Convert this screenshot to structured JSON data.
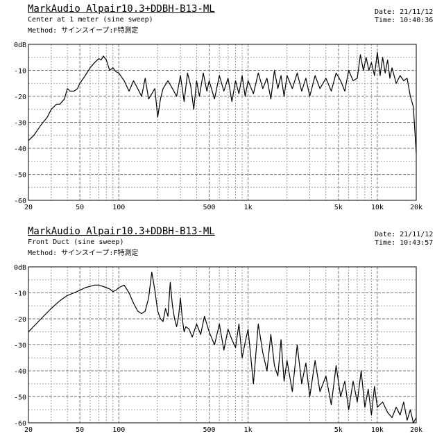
{
  "chart_data": [
    {
      "type": "line",
      "title": "MarkAudio Alpair10.3+DDBH-B13-ML",
      "subtitle": "Center at 1 meter (sine sweep)",
      "method": "Method: サインスイープ:F特測定",
      "date": "Date: 21/11/12",
      "time": "Time: 10:40:36",
      "xscale": "log",
      "xlim": [
        20,
        20000
      ],
      "ylim": [
        -60,
        0
      ],
      "grid": true,
      "xticks": [
        20,
        50,
        100,
        500,
        1000,
        5000,
        10000,
        20000
      ],
      "xtick_labels": [
        "20",
        "50",
        "100",
        "500",
        "1k",
        "5k",
        "10k",
        "20k"
      ],
      "yticks": [
        0,
        -10,
        -20,
        -30,
        -40,
        -50,
        -60
      ],
      "ytick_labels": [
        "0dB",
        "-10",
        "-20",
        "-30",
        "-40",
        "-50",
        "-60"
      ],
      "series": [
        {
          "x": [
            20,
            22,
            25,
            28,
            30,
            33,
            35,
            38,
            40,
            42,
            45,
            48,
            50,
            55,
            60,
            65,
            70,
            73,
            76,
            80,
            85,
            90,
            95,
            100,
            110,
            120,
            130,
            140,
            150,
            160,
            170,
            180,
            190,
            200,
            210,
            220,
            240,
            260,
            280,
            300,
            320,
            340,
            360,
            380,
            400,
            420,
            450,
            480,
            500,
            550,
            600,
            650,
            700,
            750,
            800,
            850,
            900,
            950,
            1000,
            1100,
            1200,
            1300,
            1400,
            1500,
            1600,
            1700,
            1800,
            1900,
            2000,
            2200,
            2400,
            2600,
            2800,
            3000,
            3300,
            3600,
            4000,
            4400,
            4800,
            5200,
            5600,
            6000,
            6500,
            7000,
            7400,
            7800,
            8200,
            8600,
            9000,
            9500,
            10000,
            10500,
            11000,
            11500,
            12000,
            12500,
            13000,
            14000,
            15000,
            16000,
            17000,
            18000,
            19000,
            20000
          ],
          "y": [
            -37,
            -35,
            -31,
            -28,
            -25,
            -23,
            -23,
            -21,
            -17,
            -18,
            -18,
            -17,
            -15,
            -12,
            -9,
            -7,
            -5.5,
            -6,
            -4.5,
            -6,
            -10,
            -9,
            -10.5,
            -11,
            -14,
            -18,
            -14,
            -17,
            -20,
            -13,
            -21,
            -19,
            -17,
            -28,
            -21,
            -17,
            -14,
            -17,
            -20,
            -12,
            -22,
            -11,
            -16,
            -25,
            -14,
            -20,
            -11,
            -18,
            -14,
            -21,
            -12,
            -18,
            -13,
            -22,
            -14,
            -19,
            -12,
            -20,
            -14,
            -19,
            -11,
            -17,
            -13,
            -21,
            -10,
            -17,
            -12,
            -20,
            -12,
            -17,
            -11,
            -18,
            -13,
            -20,
            -12,
            -17,
            -13,
            -18,
            -11,
            -14,
            -18,
            -10,
            -14,
            -13,
            -4,
            -10,
            -5,
            -10,
            -7,
            -12,
            -3,
            -12,
            -5,
            -11,
            -6,
            -13,
            -9,
            -15,
            -12,
            -14,
            -13,
            -20,
            -24,
            -42
          ]
        }
      ]
    },
    {
      "type": "line",
      "title": "MarkAudio Alpair10.3+DDBH-B13-ML",
      "subtitle": "Front Duct (sine sweep)",
      "method": "Method: サインスイープ:F特測定",
      "date": "Date: 21/11/12",
      "time": "Time: 10:43:57",
      "xscale": "log",
      "xlim": [
        20,
        20000
      ],
      "ylim": [
        -60,
        0
      ],
      "grid": true,
      "xticks": [
        20,
        50,
        100,
        500,
        1000,
        5000,
        10000,
        20000
      ],
      "xtick_labels": [
        "20",
        "50",
        "100",
        "500",
        "1k",
        "5k",
        "10k",
        "20k"
      ],
      "yticks": [
        0,
        -10,
        -20,
        -30,
        -40,
        -50,
        -60
      ],
      "ytick_labels": [
        "0dB",
        "-10",
        "-20",
        "-30",
        "-40",
        "-50",
        "-60"
      ],
      "series": [
        {
          "x": [
            20,
            25,
            30,
            35,
            40,
            45,
            50,
            55,
            60,
            65,
            70,
            75,
            80,
            85,
            90,
            95,
            100,
            105,
            110,
            120,
            130,
            140,
            150,
            160,
            170,
            180,
            190,
            200,
            210,
            220,
            230,
            240,
            250,
            260,
            270,
            280,
            290,
            300,
            310,
            320,
            330,
            350,
            370,
            400,
            430,
            460,
            500,
            550,
            600,
            650,
            700,
            750,
            800,
            850,
            900,
            950,
            1000,
            1100,
            1200,
            1300,
            1400,
            1500,
            1600,
            1700,
            1800,
            1900,
            2000,
            2200,
            2400,
            2600,
            2800,
            3000,
            3300,
            3600,
            4000,
            4400,
            4800,
            5200,
            5600,
            6000,
            6500,
            7000,
            7500,
            8000,
            8500,
            9000,
            9500,
            10000,
            11000,
            12000,
            13000,
            14000,
            15000,
            16000,
            17000,
            18000,
            19000,
            20000
          ],
          "y": [
            -25,
            -20,
            -16,
            -13,
            -11,
            -10,
            -9,
            -8,
            -7.5,
            -7,
            -7,
            -7.5,
            -8,
            -8.5,
            -9.5,
            -9,
            -8,
            -7.5,
            -7,
            -10,
            -14,
            -17,
            -18,
            -17,
            -12,
            -2,
            -9,
            -17,
            -20,
            -21,
            -16,
            -19,
            -6,
            -15,
            -20,
            -23,
            -19,
            -12,
            -20,
            -25,
            -23,
            -24,
            -27,
            -22,
            -26,
            -19,
            -25,
            -30,
            -22,
            -32,
            -24,
            -28,
            -31,
            -22,
            -35,
            -29,
            -24,
            -45,
            -22,
            -33,
            -40,
            -26,
            -38,
            -42,
            -28,
            -44,
            -36,
            -48,
            -30,
            -45,
            -37,
            -50,
            -36,
            -48,
            -42,
            -53,
            -38,
            -50,
            -44,
            -55,
            -44,
            -52,
            -40,
            -54,
            -47,
            -57,
            -46,
            -54,
            -52,
            -56,
            -58,
            -54,
            -57,
            -52,
            -59,
            -55,
            -60,
            -58
          ]
        }
      ]
    }
  ]
}
